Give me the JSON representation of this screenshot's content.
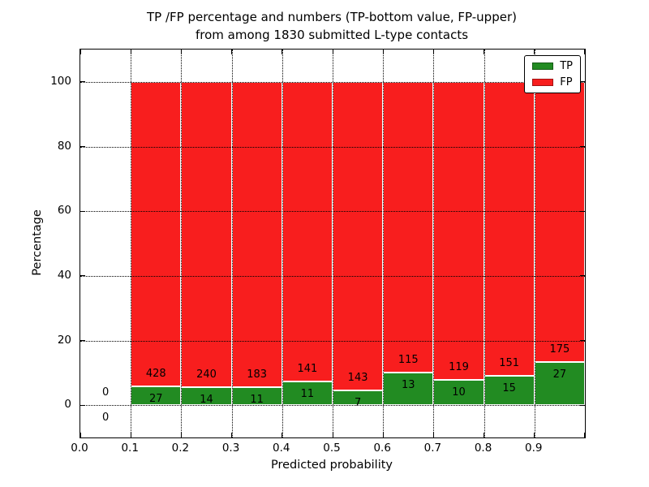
{
  "chart_data": {
    "type": "bar",
    "stacked": true,
    "title_line1": "TP /FP percentage and numbers (TP-bottom value, FP-upper)",
    "title_line2": "from among 1830 submitted L-type contacts",
    "total_submitted_contacts": 1830,
    "xlabel": "Predicted probability",
    "ylabel": "Percentage",
    "xlim": [
      0.0,
      1.0
    ],
    "ylim": [
      -10,
      110
    ],
    "x_ticks": [
      "0.0",
      "0.1",
      "0.2",
      "0.3",
      "0.4",
      "0.5",
      "0.6",
      "0.7",
      "0.8",
      "0.9"
    ],
    "y_ticks": [
      "0",
      "20",
      "40",
      "60",
      "80",
      "100"
    ],
    "grid": true,
    "grid_linestyle": "dotted",
    "legend_position": "upper right",
    "series": [
      {
        "name": "TP",
        "color": "#228b22"
      },
      {
        "name": "FP",
        "color": "#f81e1e"
      }
    ],
    "bar_edge_color": "#ffffff",
    "bins": [
      {
        "range": "0.0-0.1",
        "x_start": 0.0,
        "x_end": 0.1,
        "tp_count": 0,
        "fp_count": 0,
        "tp_pct": 0,
        "fp_pct": 0
      },
      {
        "range": "0.1-0.2",
        "x_start": 0.1,
        "x_end": 0.2,
        "tp_count": 27,
        "fp_count": 428,
        "tp_pct": 5.93,
        "fp_pct": 94.07
      },
      {
        "range": "0.2-0.3",
        "x_start": 0.2,
        "x_end": 0.3,
        "tp_count": 14,
        "fp_count": 240,
        "tp_pct": 5.51,
        "fp_pct": 94.49
      },
      {
        "range": "0.3-0.4",
        "x_start": 0.3,
        "x_end": 0.4,
        "tp_count": 11,
        "fp_count": 183,
        "tp_pct": 5.67,
        "fp_pct": 94.33
      },
      {
        "range": "0.4-0.5",
        "x_start": 0.4,
        "x_end": 0.5,
        "tp_count": 11,
        "fp_count": 141,
        "tp_pct": 7.24,
        "fp_pct": 92.76
      },
      {
        "range": "0.5-0.6",
        "x_start": 0.5,
        "x_end": 0.6,
        "tp_count": 7,
        "fp_count": 143,
        "tp_pct": 4.67,
        "fp_pct": 95.33
      },
      {
        "range": "0.6-0.7",
        "x_start": 0.6,
        "x_end": 0.7,
        "tp_count": 13,
        "fp_count": 115,
        "tp_pct": 10.16,
        "fp_pct": 89.84
      },
      {
        "range": "0.7-0.8",
        "x_start": 0.7,
        "x_end": 0.8,
        "tp_count": 10,
        "fp_count": 119,
        "tp_pct": 7.75,
        "fp_pct": 92.25
      },
      {
        "range": "0.8-0.9",
        "x_start": 0.8,
        "x_end": 0.9,
        "tp_count": 15,
        "fp_count": 151,
        "tp_pct": 9.04,
        "fp_pct": 90.96
      },
      {
        "range": "0.9-1.0",
        "x_start": 0.9,
        "x_end": 1.0,
        "tp_count": 27,
        "fp_count": 175,
        "tp_pct": 13.37,
        "fp_pct": 86.63
      }
    ]
  }
}
